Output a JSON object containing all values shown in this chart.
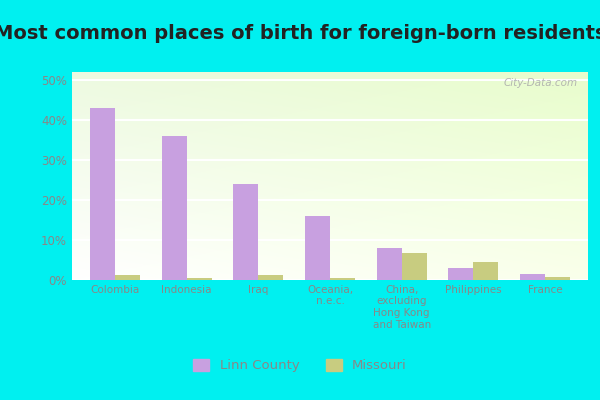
{
  "title": "Most common places of birth for foreign-born residents",
  "categories": [
    "Colombia",
    "Indonesia",
    "Iraq",
    "Oceania,\nn.e.c.",
    "China,\nexcluding\nHong Kong\nand Taiwan",
    "Philippines",
    "France"
  ],
  "linn_county": [
    0.43,
    0.36,
    0.24,
    0.16,
    0.08,
    0.03,
    0.015
  ],
  "missouri": [
    0.012,
    0.005,
    0.013,
    0.005,
    0.068,
    0.045,
    0.007
  ],
  "linn_color": "#c8a0e0",
  "missouri_color": "#c8cc80",
  "legend_labels": [
    "Linn County",
    "Missouri"
  ],
  "ylim": [
    0,
    0.52
  ],
  "yticks": [
    0.0,
    0.1,
    0.2,
    0.3,
    0.4,
    0.5
  ],
  "outer_bg": "#00f0f0",
  "plot_bg": "#e8f5ee",
  "watermark": "City-Data.com",
  "title_fontsize": 14,
  "bar_width": 0.35,
  "grid_color": "#ffffff",
  "tick_color": "#888888",
  "label_color": "#888888"
}
